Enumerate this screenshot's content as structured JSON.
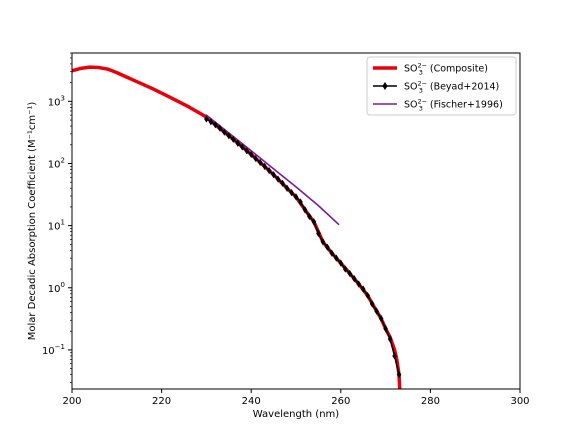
{
  "chart_data": {
    "type": "line",
    "title": "",
    "xlabel": "Wavelength (nm)",
    "ylabel": "Molar Decadic Absorption Coefficient (M⁻¹cm⁻¹)",
    "xlim": [
      200,
      300
    ],
    "ylim": [
      0.0235,
      6000
    ],
    "yscale": "log",
    "grid": false,
    "legend_position": "top-right",
    "x_ticks": [
      200,
      220,
      240,
      260,
      280,
      300
    ],
    "y_ticks": [
      {
        "value": 0.1,
        "base": "10",
        "exp": "−1"
      },
      {
        "value": 1,
        "base": "10",
        "exp": "0"
      },
      {
        "value": 10,
        "base": "10",
        "exp": "1"
      },
      {
        "value": 100,
        "base": "10",
        "exp": "2"
      },
      {
        "value": 1000,
        "base": "10",
        "exp": "3"
      }
    ],
    "series": [
      {
        "name": "SO₃²⁻ (Composite)",
        "legend_parts": {
          "base": "SO",
          "sub": "3",
          "sup": "2−",
          "suffix": " (Composite)"
        },
        "color": "#e8000b",
        "style": "line-thick",
        "x": [
          200,
          202,
          204,
          206,
          208,
          210,
          214,
          218,
          222,
          226,
          230,
          232,
          234,
          236,
          238,
          240,
          242,
          244,
          246,
          248,
          250,
          252,
          254,
          256,
          258,
          260,
          262,
          264,
          266,
          268,
          269,
          270,
          271,
          272,
          272.5,
          273,
          273.2
        ],
        "y": [
          3100,
          3400,
          3550,
          3500,
          3300,
          2900,
          2150,
          1600,
          1150,
          820,
          560,
          420,
          320,
          245,
          185,
          140,
          104,
          77,
          56,
          40,
          29,
          18,
          11.5,
          5.5,
          3.6,
          2.5,
          1.7,
          1.15,
          0.75,
          0.42,
          0.32,
          0.22,
          0.16,
          0.1,
          0.07,
          0.04,
          0.02
        ]
      },
      {
        "name": "SO₃²⁻ (Beyad+2014)",
        "legend_parts": {
          "base": "SO",
          "sub": "3",
          "sup": "2−",
          "suffix": " (Beyad+2014)"
        },
        "color": "#000000",
        "style": "line-diamond",
        "x": [
          230,
          231,
          232,
          233,
          234,
          235,
          236,
          237,
          238,
          239,
          240,
          241,
          242,
          243,
          244,
          245,
          246,
          247,
          248,
          249,
          250,
          251,
          252,
          253,
          254,
          255,
          256,
          257,
          258,
          259,
          260,
          261,
          262,
          263,
          264,
          265,
          266,
          267,
          268,
          269,
          270,
          271,
          272,
          273
        ],
        "y": [
          520,
          470,
          420,
          370,
          320,
          280,
          245,
          212,
          185,
          160,
          140,
          120,
          104,
          90,
          77,
          66,
          56,
          48,
          40,
          34,
          29,
          24,
          18,
          14,
          11.5,
          7.5,
          5.5,
          4.5,
          3.6,
          3.0,
          2.5,
          2.0,
          1.7,
          1.4,
          1.15,
          0.95,
          0.75,
          0.55,
          0.42,
          0.32,
          0.22,
          0.15,
          0.08,
          0.04
        ]
      },
      {
        "name": "SO₃²⁻ (Fischer+1996)",
        "legend_parts": {
          "base": "SO",
          "sub": "3",
          "sup": "2−",
          "suffix": " (Fischer+1996)"
        },
        "color": "#7a1aa0",
        "style": "line",
        "x": [
          230,
          235,
          240,
          245,
          250,
          255,
          259.5
        ],
        "y": [
          600,
          310,
          160,
          82,
          42,
          21,
          10.5
        ]
      }
    ]
  }
}
